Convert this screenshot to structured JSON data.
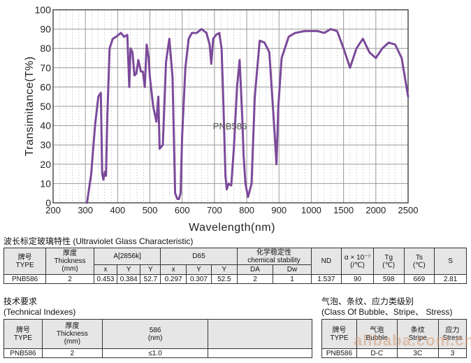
{
  "chart_data": {
    "type": "line",
    "title": "PNB586",
    "xlabel": "Wavelength(nm)",
    "ylabel": "Transimitance(T%)",
    "x_ticks": [
      200,
      300,
      400,
      500,
      600,
      700,
      800,
      900,
      1000,
      1500,
      2000,
      2500
    ],
    "y_ticks": [
      0,
      10,
      20,
      30,
      40,
      50,
      60,
      70,
      80,
      90,
      100
    ],
    "ylim": [
      0,
      100
    ],
    "grid": true,
    "series": [
      {
        "color": "#7b4a9a",
        "points": [
          [
            305,
            0
          ],
          [
            318,
            15
          ],
          [
            330,
            40
          ],
          [
            340,
            55
          ],
          [
            348,
            57
          ],
          [
            352,
            15
          ],
          [
            356,
            12
          ],
          [
            360,
            16
          ],
          [
            364,
            14
          ],
          [
            368,
            45
          ],
          [
            375,
            80
          ],
          [
            385,
            85
          ],
          [
            395,
            86
          ],
          [
            410,
            88
          ],
          [
            420,
            86
          ],
          [
            430,
            87
          ],
          [
            436,
            60
          ],
          [
            440,
            80
          ],
          [
            446,
            78
          ],
          [
            452,
            66
          ],
          [
            458,
            67
          ],
          [
            464,
            74
          ],
          [
            468,
            71
          ],
          [
            472,
            68
          ],
          [
            478,
            68
          ],
          [
            484,
            60
          ],
          [
            490,
            82
          ],
          [
            496,
            75
          ],
          [
            500,
            65
          ],
          [
            510,
            50
          ],
          [
            520,
            42
          ],
          [
            526,
            55
          ],
          [
            530,
            28
          ],
          [
            540,
            30
          ],
          [
            550,
            73
          ],
          [
            560,
            85
          ],
          [
            570,
            65
          ],
          [
            578,
            5
          ],
          [
            585,
            2
          ],
          [
            590,
            2
          ],
          [
            595,
            5
          ],
          [
            600,
            35
          ],
          [
            610,
            70
          ],
          [
            620,
            85
          ],
          [
            630,
            88
          ],
          [
            645,
            88
          ],
          [
            660,
            90
          ],
          [
            675,
            88
          ],
          [
            685,
            82
          ],
          [
            690,
            72
          ],
          [
            696,
            85
          ],
          [
            705,
            87
          ],
          [
            715,
            88
          ],
          [
            722,
            80
          ],
          [
            728,
            50
          ],
          [
            734,
            14
          ],
          [
            738,
            7
          ],
          [
            744,
            10
          ],
          [
            752,
            9
          ],
          [
            760,
            28
          ],
          [
            770,
            60
          ],
          [
            778,
            74
          ],
          [
            786,
            45
          ],
          [
            790,
            25
          ],
          [
            796,
            10
          ],
          [
            804,
            3
          ],
          [
            815,
            10
          ],
          [
            825,
            55
          ],
          [
            840,
            84
          ],
          [
            855,
            83
          ],
          [
            870,
            78
          ],
          [
            885,
            40
          ],
          [
            892,
            20
          ],
          [
            898,
            50
          ],
          [
            908,
            75
          ],
          [
            930,
            86
          ],
          [
            950,
            88
          ],
          [
            980,
            89
          ],
          [
            1000,
            89
          ],
          [
            1050,
            89
          ],
          [
            1100,
            89
          ],
          [
            1200,
            88
          ],
          [
            1300,
            90
          ],
          [
            1400,
            89
          ],
          [
            1500,
            80
          ],
          [
            1600,
            70
          ],
          [
            1700,
            80
          ],
          [
            1800,
            85
          ],
          [
            1900,
            78
          ],
          [
            2000,
            75
          ],
          [
            2100,
            80
          ],
          [
            2200,
            83
          ],
          [
            2300,
            82
          ],
          [
            2400,
            75
          ],
          [
            2450,
            65
          ],
          [
            2500,
            55
          ]
        ]
      }
    ]
  },
  "uv_section": {
    "title": "波长标定玻璃特性 (Ultraviolet Glass Characteristic)",
    "table": {
      "brand_cn": "牌号",
      "brand_en": "TYPE",
      "thickness_cn": "厚度",
      "thickness_en": "Thickness",
      "thickness_unit": "(mm)",
      "a_header": "A[2856k]",
      "d65_header": "D65",
      "chem_cn": "化学稳定性",
      "chem_en": "chemical stability",
      "nd": "ND",
      "alpha": "α × 10⁻⁷",
      "alpha_unit": "(/℃)",
      "tg": "Tg",
      "tg_unit": "(℃)",
      "ts": "Ts",
      "ts_unit": "(℃)",
      "s": "S",
      "sub": [
        "x",
        "Y",
        "Y",
        "x",
        "Y",
        "Y",
        "DA",
        "Dw"
      ],
      "values": [
        "PNB586",
        "2",
        "0.453",
        "0.384",
        "52.7",
        "0.297",
        "0.307",
        "52.5",
        "2",
        "1",
        "1.537",
        "90",
        "598",
        "669",
        "2.81"
      ]
    }
  },
  "tech_section": {
    "title_cn": "技术要求",
    "title_en": "(Technical Indexes)",
    "table": {
      "brand_cn": "牌号",
      "brand_en": "TYPE",
      "thickness_cn": "厚度",
      "thickness_en": "Thickness",
      "thickness_unit": "(mm)",
      "wave": "586",
      "wave_unit": "(nm)",
      "values": [
        "PNB586",
        "2",
        "≤1.0",
        ""
      ]
    }
  },
  "bubble_section": {
    "title_cn": "气泡、条纹、应力类级别",
    "title_en": "(Class Of Bubble、Stripe、 Stress)",
    "table": {
      "brand_cn": "牌号",
      "brand_en": "TYPE",
      "bubble_cn": "气泡",
      "bubble_en": "Bubble",
      "stripe_cn": "条纹",
      "stripe_en": "Stripe",
      "stress_cn": "应力",
      "stress_en": "Stress",
      "values": [
        "PNB586",
        "D-C",
        "3C",
        "3"
      ]
    }
  },
  "watermark": "alibaba.com.cn"
}
